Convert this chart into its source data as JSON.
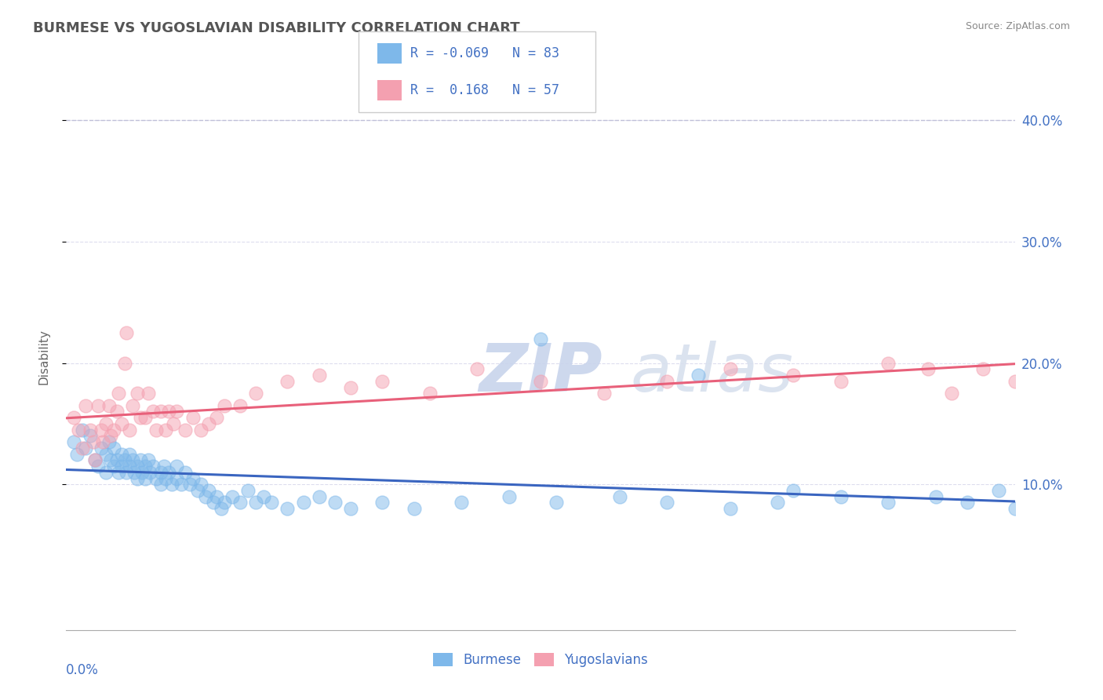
{
  "title": "BURMESE VS YUGOSLAVIAN DISABILITY CORRELATION CHART",
  "source": "Source: ZipAtlas.com",
  "ylabel": "Disability",
  "xmin": 0.0,
  "xmax": 0.6,
  "ymin": -0.02,
  "ymax": 0.43,
  "yticks": [
    0.1,
    0.2,
    0.3,
    0.4
  ],
  "ytick_labels": [
    "10.0%",
    "20.0%",
    "30.0%",
    "40.0%"
  ],
  "burmese_color": "#7EB8EA",
  "yugoslavian_color": "#F4A0B0",
  "burmese_line_color": "#3A65C0",
  "yugoslavian_line_color": "#E8607A",
  "legend_text_color": "#4472C4",
  "title_color": "#555555",
  "source_color": "#888888",
  "grid_color": "#DDDDEE",
  "dashed_line_color": "#C0C0D8",
  "burmese_r": -0.069,
  "burmese_n": 83,
  "yugoslavian_r": 0.168,
  "yugoslavian_n": 57,
  "burmese_scatter_x": [
    0.005,
    0.007,
    0.01,
    0.012,
    0.015,
    0.018,
    0.02,
    0.022,
    0.025,
    0.025,
    0.027,
    0.028,
    0.03,
    0.03,
    0.032,
    0.033,
    0.035,
    0.035,
    0.037,
    0.038,
    0.04,
    0.04,
    0.042,
    0.043,
    0.045,
    0.045,
    0.047,
    0.048,
    0.05,
    0.05,
    0.052,
    0.053,
    0.055,
    0.057,
    0.06,
    0.06,
    0.062,
    0.063,
    0.065,
    0.067,
    0.07,
    0.07,
    0.073,
    0.075,
    0.078,
    0.08,
    0.083,
    0.085,
    0.088,
    0.09,
    0.093,
    0.095,
    0.098,
    0.1,
    0.105,
    0.11,
    0.115,
    0.12,
    0.125,
    0.13,
    0.14,
    0.15,
    0.16,
    0.17,
    0.18,
    0.2,
    0.22,
    0.25,
    0.28,
    0.31,
    0.35,
    0.38,
    0.42,
    0.45,
    0.49,
    0.52,
    0.55,
    0.57,
    0.59,
    0.3,
    0.4,
    0.46,
    0.6
  ],
  "burmese_scatter_y": [
    0.135,
    0.125,
    0.145,
    0.13,
    0.14,
    0.12,
    0.115,
    0.13,
    0.125,
    0.11,
    0.135,
    0.12,
    0.115,
    0.13,
    0.12,
    0.11,
    0.125,
    0.115,
    0.12,
    0.11,
    0.125,
    0.115,
    0.12,
    0.11,
    0.115,
    0.105,
    0.12,
    0.11,
    0.115,
    0.105,
    0.12,
    0.11,
    0.115,
    0.105,
    0.11,
    0.1,
    0.115,
    0.105,
    0.11,
    0.1,
    0.115,
    0.105,
    0.1,
    0.11,
    0.1,
    0.105,
    0.095,
    0.1,
    0.09,
    0.095,
    0.085,
    0.09,
    0.08,
    0.085,
    0.09,
    0.085,
    0.095,
    0.085,
    0.09,
    0.085,
    0.08,
    0.085,
    0.09,
    0.085,
    0.08,
    0.085,
    0.08,
    0.085,
    0.09,
    0.085,
    0.09,
    0.085,
    0.08,
    0.085,
    0.09,
    0.085,
    0.09,
    0.085,
    0.095,
    0.22,
    0.19,
    0.095,
    0.08
  ],
  "yugoslavian_scatter_x": [
    0.005,
    0.008,
    0.01,
    0.012,
    0.015,
    0.017,
    0.018,
    0.02,
    0.022,
    0.023,
    0.025,
    0.027,
    0.028,
    0.03,
    0.032,
    0.033,
    0.035,
    0.037,
    0.038,
    0.04,
    0.042,
    0.045,
    0.047,
    0.05,
    0.052,
    0.055,
    0.057,
    0.06,
    0.063,
    0.065,
    0.068,
    0.07,
    0.075,
    0.08,
    0.085,
    0.09,
    0.095,
    0.1,
    0.11,
    0.12,
    0.14,
    0.16,
    0.18,
    0.2,
    0.23,
    0.26,
    0.3,
    0.34,
    0.38,
    0.42,
    0.46,
    0.49,
    0.52,
    0.545,
    0.56,
    0.58,
    0.6
  ],
  "yugoslavian_scatter_y": [
    0.155,
    0.145,
    0.13,
    0.165,
    0.145,
    0.135,
    0.12,
    0.165,
    0.145,
    0.135,
    0.15,
    0.165,
    0.14,
    0.145,
    0.16,
    0.175,
    0.15,
    0.2,
    0.225,
    0.145,
    0.165,
    0.175,
    0.155,
    0.155,
    0.175,
    0.16,
    0.145,
    0.16,
    0.145,
    0.16,
    0.15,
    0.16,
    0.145,
    0.155,
    0.145,
    0.15,
    0.155,
    0.165,
    0.165,
    0.175,
    0.185,
    0.19,
    0.18,
    0.185,
    0.175,
    0.195,
    0.185,
    0.175,
    0.185,
    0.195,
    0.19,
    0.185,
    0.2,
    0.195,
    0.175,
    0.195,
    0.185
  ]
}
